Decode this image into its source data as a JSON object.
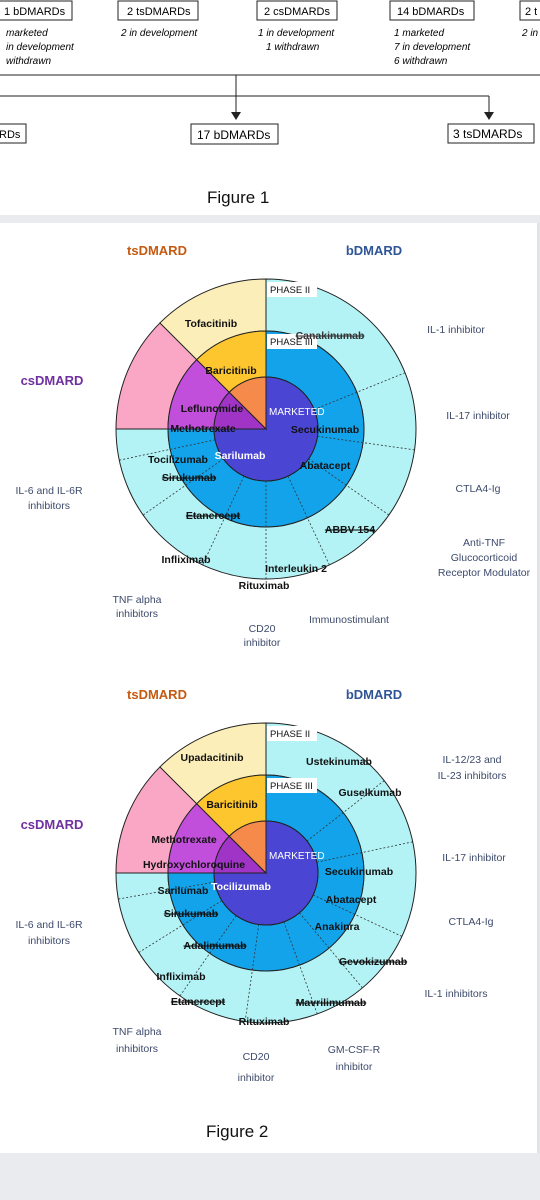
{
  "figure1": {
    "caption": "Figure 1",
    "top_boxes": [
      {
        "label": "1 bDMARDs",
        "notes": [
          "marketed",
          "in development",
          "withdrawn"
        ]
      },
      {
        "label": "2 tsDMARDs",
        "notes": [
          "2 in development"
        ]
      },
      {
        "label": "2 csDMARDs",
        "notes": [
          "1 in development",
          "1 withdrawn"
        ]
      },
      {
        "label": "14 bDMARDs",
        "notes": [
          "1 marketed",
          "7 in development",
          "6 withdrawn"
        ]
      },
      {
        "label": "2 t",
        "notes": [
          "2 in"
        ]
      }
    ],
    "bottom_boxes": [
      "RDs",
      "17 bDMARDs",
      "3 tsDMARDs"
    ]
  },
  "colors": {
    "ts_outer": "#fbeeb9",
    "ts_mid": "#fdc52e",
    "ts_inner": "#f58a4b",
    "cs_outer": "#f9a7c4",
    "cs_mid": "#c24fdb",
    "cs_inner": "#a034c6",
    "b_outer": "#b3f3f6",
    "b_mid": "#12a3ea",
    "b_inner": "#4a45d2",
    "ts_title": "#c55a11",
    "cs_title": "#7030a0",
    "b_title": "#2f5597"
  },
  "figure2_caption": "Figure 2",
  "diagrams": [
    {
      "group_titles": {
        "ts": "tsDMARD",
        "b": "bDMARD",
        "cs": "csDMARD"
      },
      "phase_labels": {
        "p2": "PHASE II",
        "p3": "PHASE III",
        "m": "MARKETED"
      },
      "drugs": [
        {
          "text": "Tofacitinib",
          "strike": false
        },
        {
          "text": "Baricitinib",
          "strike": false
        },
        {
          "text": "Leflunomide",
          "strike": false
        },
        {
          "text": "Methotrexate",
          "strike": false
        },
        {
          "text": "Canakinumab",
          "strike": true
        },
        {
          "text": "Secukinumab",
          "strike": false
        },
        {
          "text": "Abatacept",
          "strike": false
        },
        {
          "text": "ABBV 154",
          "strike": true
        },
        {
          "text": "Interleukin 2",
          "strike": false
        },
        {
          "text": "Rituximab",
          "strike": false
        },
        {
          "text": "Infliximab",
          "strike": false
        },
        {
          "text": "Etanercept",
          "strike": true
        },
        {
          "text": "Tocilizumab",
          "strike": false
        },
        {
          "text": "Sarilumab",
          "strike": false
        },
        {
          "text": "Sirukumab",
          "strike": true
        }
      ],
      "categories": [
        "IL-1 inhibitor",
        "IL-17 inhibitor",
        "CTLA4-Ig",
        "Anti-TNF",
        "Glucocorticoid",
        "Receptor Modulator",
        "Immunostimulant",
        "CD20",
        "inhibitor",
        "TNF alpha",
        "inhibitors",
        "IL-6 and IL-6R",
        "inhibitors"
      ]
    },
    {
      "group_titles": {
        "ts": "tsDMARD",
        "b": "bDMARD",
        "cs": "csDMARD"
      },
      "phase_labels": {
        "p2": "PHASE II",
        "p3": "PHASE III",
        "m": "MARKETED"
      },
      "drugs": [
        {
          "text": "Upadacitinib",
          "strike": false
        },
        {
          "text": "Baricitinib",
          "strike": false
        },
        {
          "text": "Methotrexate",
          "strike": false
        },
        {
          "text": "Hydroxychloroquine",
          "strike": false
        },
        {
          "text": "Ustekinumab",
          "strike": false
        },
        {
          "text": "Guselkumab",
          "strike": false
        },
        {
          "text": "Secukinumab",
          "strike": false
        },
        {
          "text": "Abatacept",
          "strike": false
        },
        {
          "text": "Anakinra",
          "strike": false
        },
        {
          "text": "Gevokizumab",
          "strike": true
        },
        {
          "text": "Mavrilimumab",
          "strike": true
        },
        {
          "text": "Rituximab",
          "strike": false
        },
        {
          "text": "Etanercept",
          "strike": true
        },
        {
          "text": "Infliximab",
          "strike": false
        },
        {
          "text": "Adalimumab",
          "strike": true
        },
        {
          "text": "Sirukumab",
          "strike": true
        },
        {
          "text": "Sarilumab",
          "strike": false
        },
        {
          "text": "Tocilizumab",
          "strike": false
        }
      ],
      "categories": [
        "IL-12/23 and",
        "IL-23 inhibitors",
        "IL-17 inhibitor",
        "CTLA4-Ig",
        "IL-1 inhibitors",
        "GM-CSF-R",
        "inhibitor",
        "CD20",
        "inhibitor",
        "TNF alpha",
        "inhibitors",
        "IL-6 and IL-6R",
        "inhibitors"
      ]
    }
  ]
}
